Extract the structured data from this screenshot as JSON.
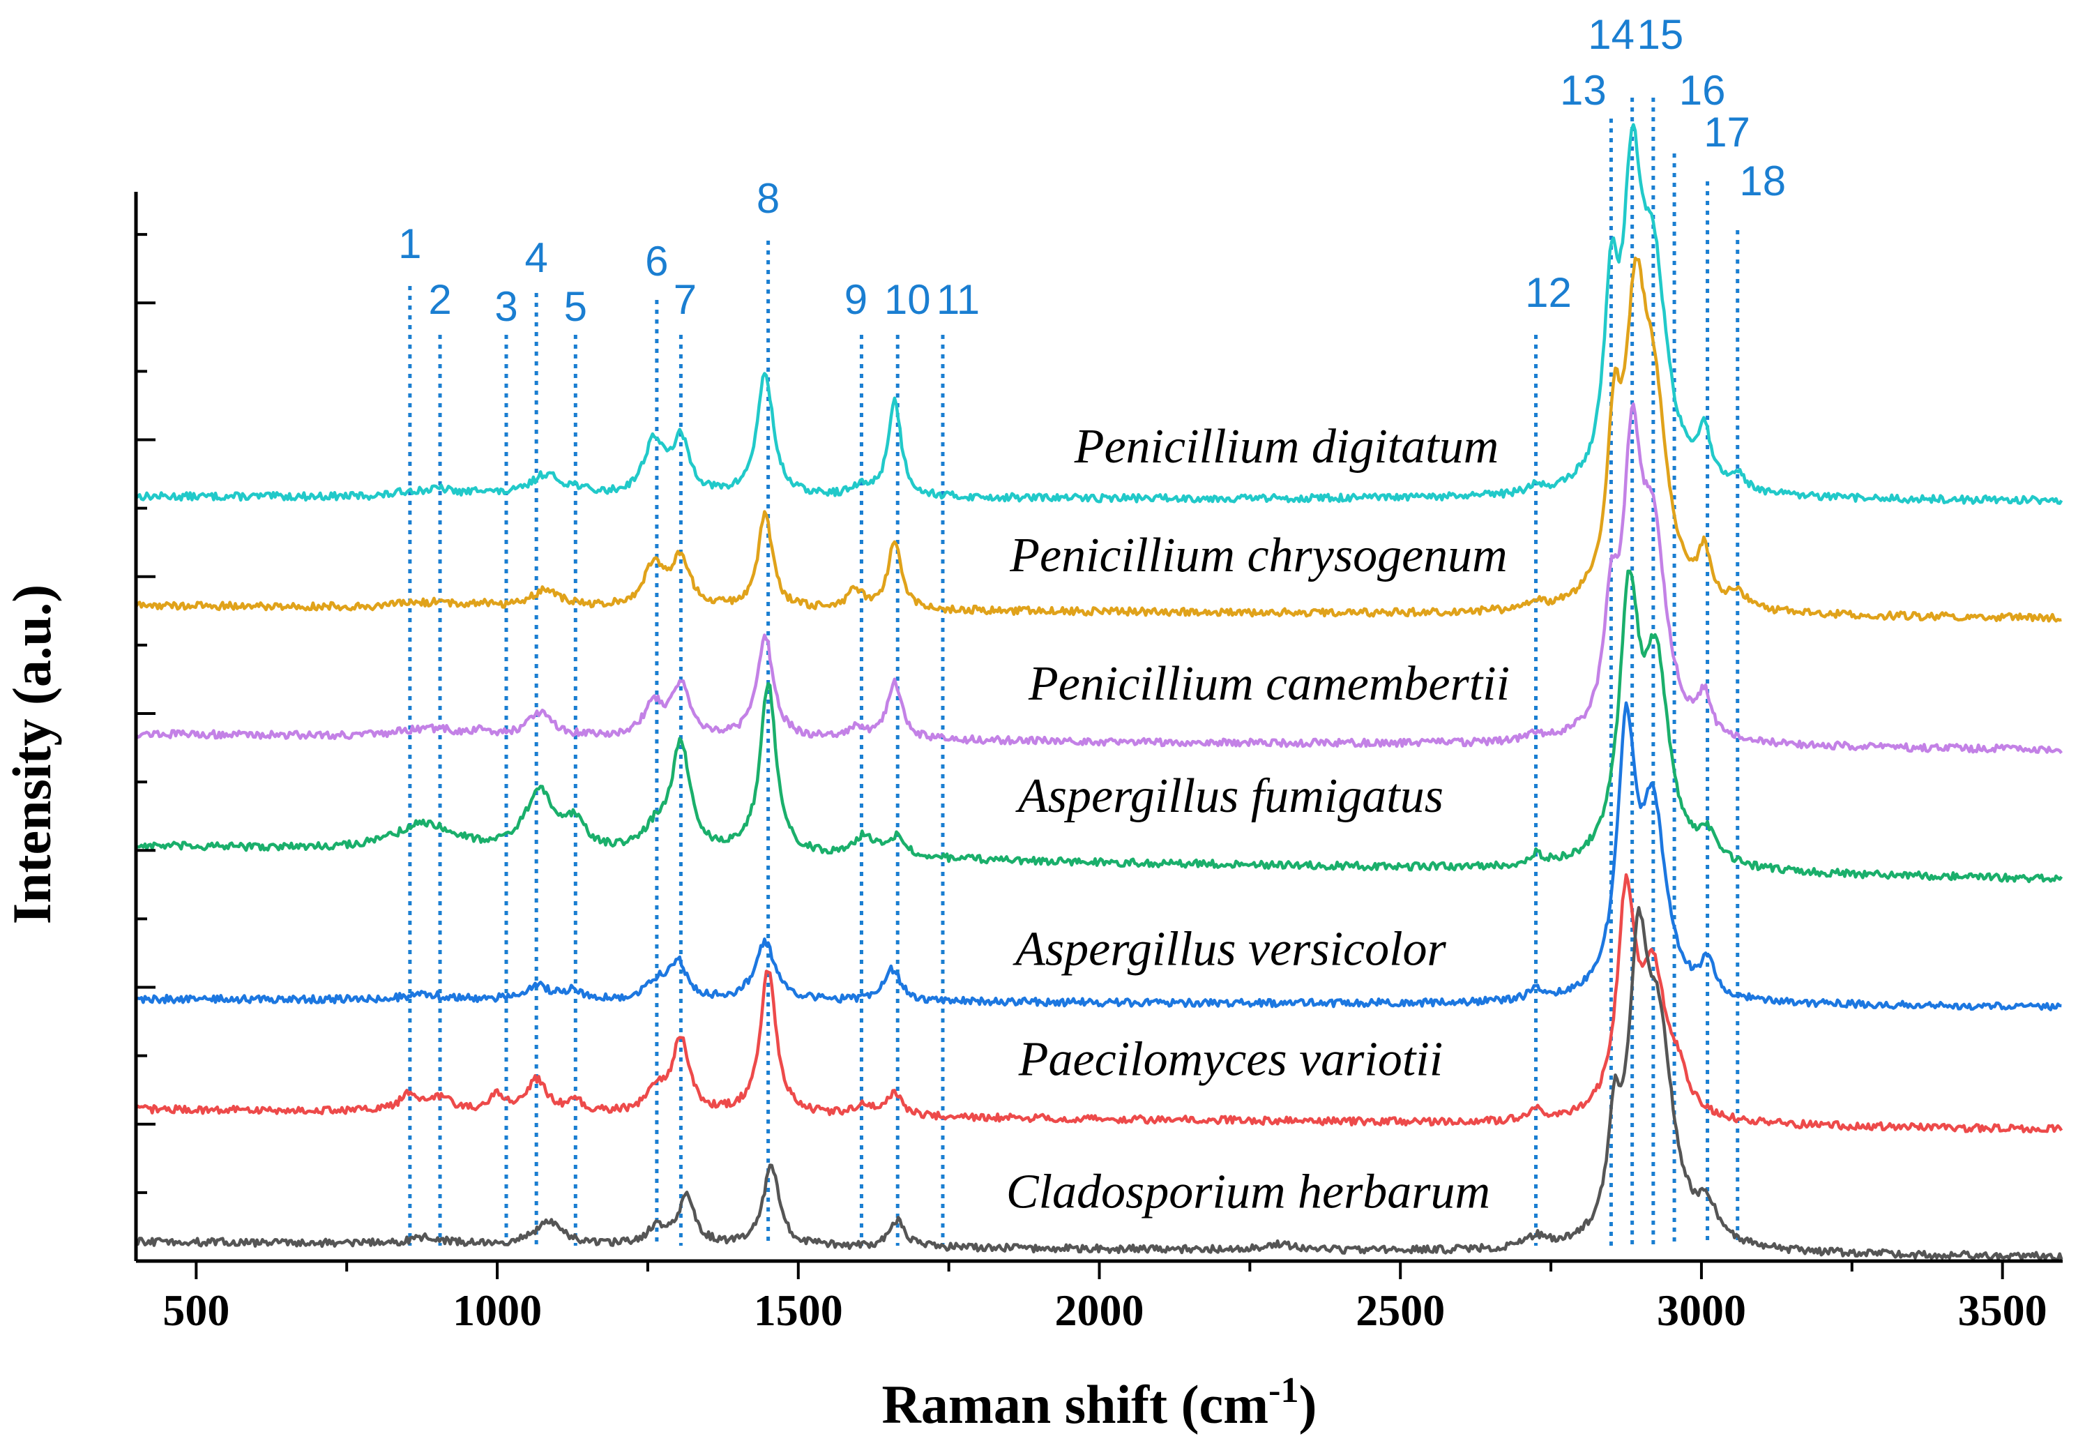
{
  "chart_data": {
    "type": "line",
    "xlabel": "Raman shift (cm",
    "xlabel_sup": "-1",
    "xlabel_end": ")",
    "ylabel": "Intensity (a.u.)",
    "xlim": [
      400,
      3600
    ],
    "ylim": [
      0,
      100
    ],
    "x_ticks": [
      500,
      1000,
      1500,
      2000,
      2500,
      3000,
      3500
    ],
    "peak_markers": [
      {
        "label": "1",
        "x": 855
      },
      {
        "label": "2",
        "x": 905
      },
      {
        "label": "3",
        "x": 1015
      },
      {
        "label": "4",
        "x": 1065
      },
      {
        "label": "5",
        "x": 1130
      },
      {
        "label": "6",
        "x": 1265
      },
      {
        "label": "7",
        "x": 1305
      },
      {
        "label": "8",
        "x": 1450
      },
      {
        "label": "9",
        "x": 1605
      },
      {
        "label": "10",
        "x": 1665
      },
      {
        "label": "11",
        "x": 1740
      },
      {
        "label": "12",
        "x": 2725
      },
      {
        "label": "13",
        "x": 2850
      },
      {
        "label": "14",
        "x": 2885
      },
      {
        "label": "15",
        "x": 2920
      },
      {
        "label": "16",
        "x": 2955
      },
      {
        "label": "17",
        "x": 3010
      },
      {
        "label": "18",
        "x": 3060
      }
    ],
    "series": [
      {
        "name": "Penicillium digitatum",
        "color": "#21c9c9",
        "baseline": 71.5,
        "end": 71.1,
        "peaks": [
          [
            855,
            0.4,
            25
          ],
          [
            905,
            0.6,
            30
          ],
          [
            975,
            0.5,
            15
          ],
          [
            1080,
            2.0,
            30
          ],
          [
            1130,
            0.5,
            20
          ],
          [
            1260,
            5.0,
            20
          ],
          [
            1305,
            5.0,
            18
          ],
          [
            1445,
            11.5,
            16
          ],
          [
            1605,
            0.8,
            20
          ],
          [
            1660,
            9.0,
            13
          ],
          [
            2725,
            0.6,
            15
          ],
          [
            2850,
            16,
            14
          ],
          [
            2885,
            25,
            18
          ],
          [
            2920,
            20,
            28
          ],
          [
            3005,
            5,
            12
          ],
          [
            3060,
            1.5,
            15
          ]
        ]
      },
      {
        "name": "Penicillium chrysogenum",
        "color": "#e0a21a",
        "baseline": 61.3,
        "end": 60.1,
        "peaks": [
          [
            855,
            0.3,
            25
          ],
          [
            905,
            0.4,
            30
          ],
          [
            975,
            0.4,
            15
          ],
          [
            1080,
            1.6,
            30
          ],
          [
            1260,
            4.0,
            20
          ],
          [
            1305,
            4.5,
            18
          ],
          [
            1445,
            9.0,
            14
          ],
          [
            1595,
            1.8,
            15
          ],
          [
            1660,
            6.5,
            13
          ],
          [
            2725,
            0.5,
            15
          ],
          [
            2855,
            14,
            14
          ],
          [
            2890,
            23,
            20
          ],
          [
            2920,
            18,
            28
          ],
          [
            3005,
            4.5,
            12
          ],
          [
            3060,
            1.5,
            15
          ]
        ]
      },
      {
        "name": "Penicillium camembertii",
        "color": "#c381e6",
        "baseline": 49.3,
        "end": 47.8,
        "peaks": [
          [
            855,
            0.4,
            25
          ],
          [
            905,
            0.6,
            30
          ],
          [
            975,
            0.5,
            15
          ],
          [
            1070,
            2.2,
            25
          ],
          [
            1260,
            3.0,
            20
          ],
          [
            1305,
            4.8,
            18
          ],
          [
            1445,
            9.5,
            16
          ],
          [
            1595,
            1.0,
            15
          ],
          [
            1660,
            5.5,
            14
          ],
          [
            2725,
            0.6,
            15
          ],
          [
            2850,
            10,
            14
          ],
          [
            2885,
            24,
            18
          ],
          [
            2920,
            18,
            26
          ],
          [
            3005,
            3.5,
            12
          ]
        ]
      },
      {
        "name": "Aspergillus fumigatus",
        "color": "#1aaf6b",
        "baseline": 38.8,
        "end": 35.7,
        "peaks": [
          [
            880,
            2.5,
            60
          ],
          [
            1070,
            5.5,
            28
          ],
          [
            1130,
            2.5,
            20
          ],
          [
            1265,
            2.0,
            25
          ],
          [
            1305,
            10.0,
            18
          ],
          [
            1450,
            16.0,
            16
          ],
          [
            1610,
            2.0,
            18
          ],
          [
            1665,
            2.0,
            18
          ],
          [
            2725,
            1.0,
            15
          ],
          [
            2880,
            24,
            20
          ],
          [
            2925,
            18,
            25
          ],
          [
            3010,
            2.5,
            20
          ]
        ]
      },
      {
        "name": "Aspergillus versicolor",
        "color": "#1c77e0",
        "baseline": 24.5,
        "end": 23.8,
        "peaks": [
          [
            880,
            0.5,
            40
          ],
          [
            1065,
            1.3,
            25
          ],
          [
            1125,
            0.8,
            20
          ],
          [
            1265,
            1.5,
            20
          ],
          [
            1300,
            3.5,
            18
          ],
          [
            1445,
            5.5,
            20
          ],
          [
            1655,
            3.0,
            18
          ],
          [
            2725,
            1.0,
            15
          ],
          [
            2875,
            24,
            18
          ],
          [
            2920,
            17,
            25
          ],
          [
            3010,
            3.0,
            15
          ]
        ]
      },
      {
        "name": "Paecilomyces variotii",
        "color": "#ed4a4a",
        "baseline": 14.2,
        "end": 12.3,
        "peaks": [
          [
            855,
            1.5,
            20
          ],
          [
            905,
            1.2,
            25
          ],
          [
            1000,
            1.5,
            15
          ],
          [
            1065,
            3.0,
            20
          ],
          [
            1130,
            1.0,
            15
          ],
          [
            1265,
            2.0,
            20
          ],
          [
            1305,
            7.0,
            16
          ],
          [
            1450,
            13.5,
            16
          ],
          [
            1610,
            1.0,
            18
          ],
          [
            1660,
            2.0,
            15
          ],
          [
            2725,
            1.0,
            15
          ],
          [
            2875,
            20,
            18
          ],
          [
            2920,
            13,
            25
          ],
          [
            2960,
            3.0,
            20
          ]
        ]
      },
      {
        "name": "Cladosporium herbarum",
        "color": "#555555",
        "baseline": 1.8,
        "end": 0.4,
        "peaks": [
          [
            880,
            0.6,
            30
          ],
          [
            1085,
            2.2,
            25
          ],
          [
            1265,
            1.5,
            20
          ],
          [
            1315,
            4.5,
            16
          ],
          [
            1455,
            7.5,
            16
          ],
          [
            1665,
            2.5,
            15
          ],
          [
            2300,
            0.5,
            40
          ],
          [
            2725,
            1.0,
            20
          ],
          [
            2855,
            9,
            12
          ],
          [
            2895,
            24,
            20
          ],
          [
            2930,
            18,
            28
          ],
          [
            3010,
            3.0,
            20
          ]
        ]
      }
    ]
  }
}
